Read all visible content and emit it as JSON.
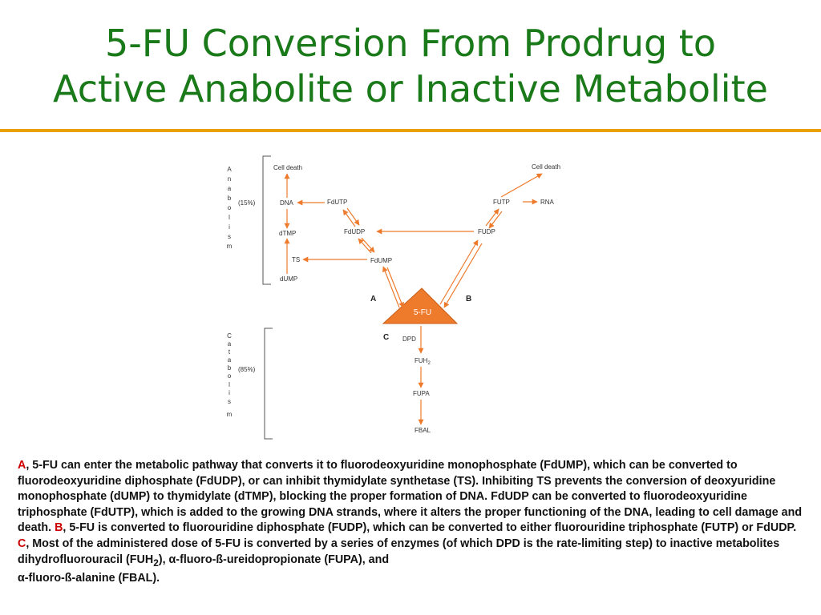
{
  "title": {
    "line1": "5-FU Conversion From Prodrug to",
    "line2": "Active Anabolite or Inactive Metabolite"
  },
  "colors": {
    "title": "#1a7a1a",
    "rule": "#e8a100",
    "arrow": "#ee7a2c",
    "triangle": "#ee7a2c",
    "marker": "#cc0000"
  },
  "diagram": {
    "anabolism_letters": [
      "A",
      "n",
      "a",
      "b",
      "o",
      "l",
      "i",
      "s",
      "m"
    ],
    "catabolism_letters": [
      "C",
      "a",
      "t",
      "a",
      "b",
      "o",
      "l",
      "i",
      "s",
      "m"
    ],
    "anabolism_pct": "(15%)",
    "catabolism_pct": "(85%)",
    "nodes": {
      "cell_death_left": "Cell death",
      "cell_death_right": "Cell death",
      "dna": "DNA",
      "fdutp": "FdUTP",
      "dtmp": "dTMP",
      "fdudp": "FdUDP",
      "ts": "TS",
      "fdump": "FdUMP",
      "dump": "dUMP",
      "futp": "FUTP",
      "rna": "RNA",
      "fudp": "FUDP",
      "fu": "5-FU",
      "dpd": "DPD",
      "fuh2_base": "FUH",
      "fuh2_sub": "2",
      "fupa": "FUPA",
      "fbal": "FBAL"
    },
    "path_a": "A",
    "path_b": "B",
    "path_c": "C"
  },
  "caption": {
    "a_marker": "A",
    "a_text": ", 5-FU can enter the metabolic pathway that converts it to fluorodeoxyuridine monophosphate (FdUMP), which can be converted to fluorodeoxyuridine diphosphate (FdUDP), or can inhibit thymidylate synthetase (TS). Inhibiting TS prevents the conversion of deoxyuridine monophosphate (dUMP) to thymidylate (dTMP), blocking the proper formation of DNA. FdUDP can be converted to fluorodeoxyuridine triphosphate (FdUTP), which is added to the growing DNA strands, where it alters the proper functioning of the DNA, leading to cell damage and death. ",
    "b_marker": "B",
    "b_text": ", 5-FU is converted to fluorouridine diphosphate (FUDP), which can be converted to either fluorouridine triphosphate (FUTP) or FdUDP.",
    "c_marker": "C",
    "c_text_1": ", Most of the administered dose of 5-FU is converted by a series of enzymes (of which DPD is the rate-limiting step) to inactive metabolites dihydrofluorouracil (FUH",
    "c_sub": "2",
    "c_text_2": "), α-fluoro-ß-ureidopropionate (FUPA), and",
    "c_text_3": "α-fluoro-ß-alanine (FBAL)."
  }
}
